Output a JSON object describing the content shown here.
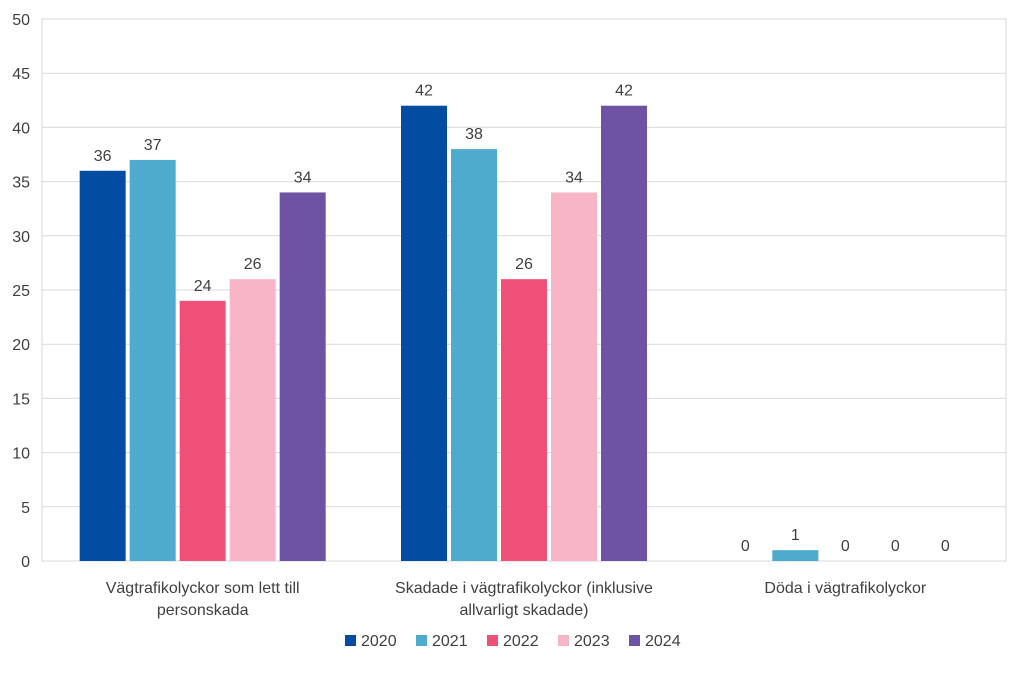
{
  "chart_data": {
    "type": "bar",
    "title": "",
    "xlabel": "",
    "ylabel": "",
    "ylim": [
      0,
      50
    ],
    "yticks": [
      0,
      5,
      10,
      15,
      20,
      25,
      30,
      35,
      40,
      45,
      50
    ],
    "grid": true,
    "legend_position": "bottom",
    "categories": [
      [
        "Vägtrafikolyckor som lett till",
        "personskada"
      ],
      [
        "Skadade i vägtrafikolyckor (inklusive",
        "allvarligt skadade)"
      ],
      [
        "Döda i vägtrafikolyckor"
      ]
    ],
    "series": [
      {
        "name": "2020",
        "color": "#024da1",
        "values": [
          36,
          42,
          0
        ]
      },
      {
        "name": "2021",
        "color": "#4eabce",
        "values": [
          37,
          38,
          1
        ]
      },
      {
        "name": "2022",
        "color": "#ef5078",
        "values": [
          24,
          26,
          0
        ]
      },
      {
        "name": "2023",
        "color": "#f8b5c8",
        "values": [
          26,
          34,
          0
        ]
      },
      {
        "name": "2024",
        "color": "#6e52a3",
        "values": [
          34,
          42,
          0
        ]
      }
    ]
  }
}
